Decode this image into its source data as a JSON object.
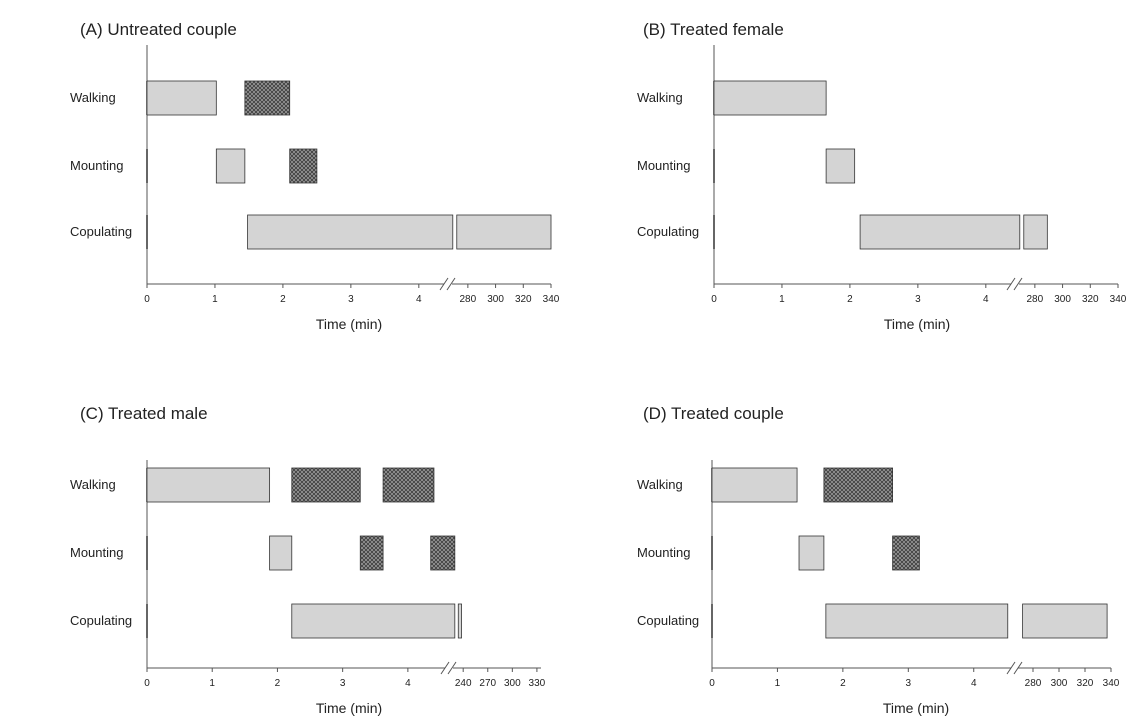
{
  "figure": {
    "row_labels": [
      "Walking",
      "Mounting",
      "Copulating"
    ],
    "colors": {
      "plain_fill": "#d4d4d4",
      "hatched_fill": "#9a9a9a",
      "stroke": "#333333",
      "axis": "#555555"
    }
  },
  "chart_data": [
    {
      "type": "bar",
      "title": "(A) Untreated couple",
      "xlabel": "Time (min)",
      "categories": [
        "Walking",
        "Mounting",
        "Copulating"
      ],
      "broken_axis": true,
      "xlim_before_break": [
        0,
        4.4
      ],
      "xlim_after_break": [
        270,
        340
      ],
      "ticks_before_break": [
        "0",
        "1",
        "2",
        "3",
        "4"
      ],
      "ticks_after_break": [
        "280",
        "300",
        "320",
        "340"
      ],
      "bars": [
        {
          "category": "Walking",
          "start": 0,
          "end": 1.02,
          "pattern": "plain"
        },
        {
          "category": "Walking",
          "start": 1.44,
          "end": 2.1,
          "pattern": "hatched"
        },
        {
          "category": "Mounting",
          "start": 1.02,
          "end": 1.44,
          "pattern": "plain"
        },
        {
          "category": "Mounting",
          "start": 2.1,
          "end": 2.5,
          "pattern": "hatched"
        },
        {
          "category": "Copulating",
          "start": 1.48,
          "end": 4.5,
          "pattern": "plain"
        },
        {
          "category": "Copulating",
          "start": 272,
          "end": 340,
          "pattern": "plain"
        }
      ]
    },
    {
      "type": "bar",
      "title": "(B) Treated female",
      "xlabel": "Time (min)",
      "categories": [
        "Walking",
        "Mounting",
        "Copulating"
      ],
      "broken_axis": true,
      "xlim_before_break": [
        0,
        4.4
      ],
      "xlim_after_break": [
        270,
        340
      ],
      "ticks_before_break": [
        "0",
        "1",
        "2",
        "3",
        "4"
      ],
      "ticks_after_break": [
        "280",
        "300",
        "320",
        "340"
      ],
      "bars": [
        {
          "category": "Walking",
          "start": 0,
          "end": 1.65,
          "pattern": "plain"
        },
        {
          "category": "Mounting",
          "start": 1.65,
          "end": 2.07,
          "pattern": "plain"
        },
        {
          "category": "Copulating",
          "start": 2.15,
          "end": 4.5,
          "pattern": "plain"
        },
        {
          "category": "Copulating",
          "start": 272,
          "end": 289,
          "pattern": "plain"
        }
      ]
    },
    {
      "type": "bar",
      "title": "(C) Treated male",
      "xlabel": "Time (min)",
      "categories": [
        "Walking",
        "Mounting",
        "Copulating"
      ],
      "broken_axis": true,
      "xlim_before_break": [
        0,
        4.6
      ],
      "xlim_after_break": [
        230,
        335
      ],
      "ticks_before_break": [
        "0",
        "1",
        "2",
        "3",
        "4"
      ],
      "ticks_after_break": [
        "240",
        "270",
        "300",
        "330"
      ],
      "bars": [
        {
          "category": "Walking",
          "start": 0,
          "end": 1.88,
          "pattern": "plain"
        },
        {
          "category": "Walking",
          "start": 2.22,
          "end": 3.27,
          "pattern": "hatched"
        },
        {
          "category": "Walking",
          "start": 3.62,
          "end": 4.4,
          "pattern": "hatched"
        },
        {
          "category": "Mounting",
          "start": 1.88,
          "end": 2.22,
          "pattern": "plain"
        },
        {
          "category": "Mounting",
          "start": 3.27,
          "end": 3.62,
          "pattern": "hatched"
        },
        {
          "category": "Mounting",
          "start": 4.35,
          "end": 4.72,
          "pattern": "hatched"
        },
        {
          "category": "Copulating",
          "start": 2.22,
          "end": 4.72,
          "pattern": "plain"
        },
        {
          "category": "Copulating",
          "start": 234,
          "end": 238,
          "pattern": "plain"
        }
      ]
    },
    {
      "type": "bar",
      "title": "(D) Treated couple",
      "xlabel": "Time (min)",
      "categories": [
        "Walking",
        "Mounting",
        "Copulating"
      ],
      "broken_axis": true,
      "xlim_before_break": [
        0,
        4.6
      ],
      "xlim_after_break": [
        270,
        340
      ],
      "ticks_before_break": [
        "0",
        "1",
        "2",
        "3",
        "4"
      ],
      "ticks_after_break": [
        "280",
        "300",
        "320",
        "340"
      ],
      "bars": [
        {
          "category": "Walking",
          "start": 0,
          "end": 1.3,
          "pattern": "plain"
        },
        {
          "category": "Walking",
          "start": 1.71,
          "end": 2.76,
          "pattern": "hatched"
        },
        {
          "category": "Mounting",
          "start": 1.33,
          "end": 1.71,
          "pattern": "plain"
        },
        {
          "category": "Mounting",
          "start": 2.76,
          "end": 3.17,
          "pattern": "hatched"
        },
        {
          "category": "Copulating",
          "start": 1.74,
          "end": 4.52,
          "pattern": "plain"
        },
        {
          "category": "Copulating",
          "start": 272,
          "end": 337,
          "pattern": "plain"
        }
      ]
    }
  ]
}
